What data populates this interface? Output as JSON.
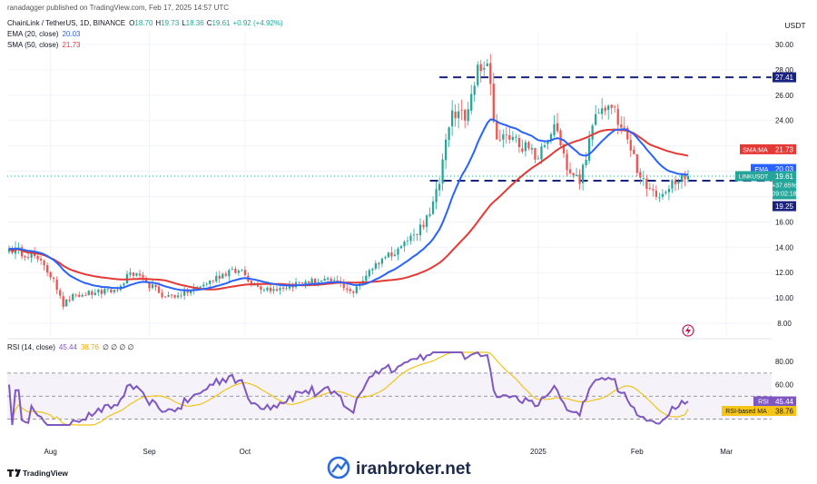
{
  "header": {
    "published": "ranadagger published on TradingView.com, Feb 17, 2025 14:57 UTC",
    "symbol": "ChainLink / TetherUS, 1D, BINANCE",
    "ohlc": [
      {
        "k": "O",
        "v": "18.70"
      },
      {
        "k": "H",
        "v": "19.73"
      },
      {
        "k": "L",
        "v": "18.36"
      },
      {
        "k": "C",
        "v": "19.61"
      }
    ],
    "change": "+0.92 (+4.92%)",
    "ema_label": "EMA (20, close)",
    "ema_value": "20.03",
    "sma_label": "SMA (50, close)",
    "sma_value": "21.73"
  },
  "currency": "USDT",
  "badges": {
    "level_top": "27.41",
    "sma_tag": "SMA:MA",
    "sma_val": "21.73",
    "ema_tag": "EMA",
    "ema_val": "20.03",
    "sym_tag": "LINKUSDT",
    "price": "19.61",
    "pct": "+37.65%",
    "timer": "09:02:18",
    "level_bottom": "19.25"
  },
  "rsi": {
    "label": "RSI (14, close)",
    "value": "45.44",
    "ma_value": "38.76",
    "tail": "∅ ∅ ∅ ∅",
    "rsi_tag": "RSI",
    "rsi_val": "45.44",
    "ma_tag": "RSI-based MA",
    "ma_val": "38.76"
  },
  "footer": {
    "brand": "TradingView",
    "watermark": "iranbroker.net"
  },
  "colors": {
    "up": "#26a69a",
    "down": "#ef5350",
    "ema": "#2962ff",
    "sma": "#e53935",
    "rsi": "#7e57c2",
    "rsi_ma": "#f0c419",
    "level": "#1a237e"
  },
  "chart_data": [
    {
      "type": "candlestick",
      "symbol": "LINKUSDT",
      "interval": "1D",
      "ylim": [
        7,
        31
      ],
      "y_ticks": [
        8,
        10,
        12,
        14,
        16,
        18,
        20,
        22,
        24,
        26,
        28,
        30
      ],
      "y_tick_labels": [
        "8.00",
        "10.00",
        "12.00",
        "14.00",
        "16.00",
        "",
        "",
        "",
        "24.00",
        "26.00",
        "28.00",
        "30.00"
      ],
      "x_tick_labels": [
        "Aug",
        "Sep",
        "Oct",
        "2025",
        "Feb",
        "Mar"
      ],
      "x_tick_dates": [
        "2024-08-01",
        "2024-09-01",
        "2024-10-01",
        "2025-01-01",
        "2025-02-01",
        "2025-03-01"
      ],
      "date_range": [
        "2024-07-19",
        "2025-02-17"
      ],
      "horizontal_levels": [
        27.41,
        19.25
      ],
      "current_price": 19.61,
      "anchors": [
        {
          "date": "2024-07-19",
          "close": 13.9
        },
        {
          "date": "2024-07-27",
          "close": 13.3
        },
        {
          "date": "2024-08-02",
          "close": 11.5
        },
        {
          "date": "2024-08-05",
          "close": 9.3
        },
        {
          "date": "2024-08-08",
          "close": 10.3
        },
        {
          "date": "2024-08-15",
          "close": 10.4
        },
        {
          "date": "2024-08-22",
          "close": 10.6
        },
        {
          "date": "2024-08-26",
          "close": 12.0
        },
        {
          "date": "2024-08-31",
          "close": 11.2
        },
        {
          "date": "2024-09-06",
          "close": 10.1
        },
        {
          "date": "2024-09-10",
          "close": 10.2
        },
        {
          "date": "2024-09-17",
          "close": 10.9
        },
        {
          "date": "2024-09-27",
          "close": 12.3
        },
        {
          "date": "2024-10-01",
          "close": 11.8
        },
        {
          "date": "2024-10-03",
          "close": 11.0
        },
        {
          "date": "2024-10-10",
          "close": 10.7
        },
        {
          "date": "2024-10-20",
          "close": 11.3
        },
        {
          "date": "2024-10-30",
          "close": 11.3
        },
        {
          "date": "2024-11-04",
          "close": 10.4
        },
        {
          "date": "2024-11-09",
          "close": 12.2
        },
        {
          "date": "2024-11-13",
          "close": 13.1
        },
        {
          "date": "2024-11-18",
          "close": 13.9
        },
        {
          "date": "2024-11-23",
          "close": 15.0
        },
        {
          "date": "2024-11-28",
          "close": 16.6
        },
        {
          "date": "2024-12-01",
          "close": 19.0
        },
        {
          "date": "2024-12-03",
          "close": 22.5
        },
        {
          "date": "2024-12-05",
          "close": 24.8
        },
        {
          "date": "2024-12-09",
          "close": 24.0
        },
        {
          "date": "2024-12-13",
          "close": 28.4
        },
        {
          "date": "2024-12-16",
          "close": 28.5
        },
        {
          "date": "2024-12-19",
          "close": 22.5
        },
        {
          "date": "2024-12-24",
          "close": 22.7
        },
        {
          "date": "2025-01-01",
          "close": 21.0
        },
        {
          "date": "2025-01-06",
          "close": 23.7
        },
        {
          "date": "2025-01-10",
          "close": 20.1
        },
        {
          "date": "2025-01-14",
          "close": 19.0
        },
        {
          "date": "2025-01-19",
          "close": 24.5
        },
        {
          "date": "2025-01-24",
          "close": 25.0
        },
        {
          "date": "2025-01-28",
          "close": 23.5
        },
        {
          "date": "2025-02-02",
          "close": 19.5
        },
        {
          "date": "2025-02-04",
          "close": 18.6
        },
        {
          "date": "2025-02-09",
          "close": 18.2
        },
        {
          "date": "2025-02-12",
          "close": 19.3
        },
        {
          "date": "2025-02-17",
          "close": 19.61
        }
      ],
      "series": [
        {
          "name": "EMA (20, close)",
          "last": 20.03
        },
        {
          "name": "SMA (50, close)",
          "last": 21.73
        }
      ]
    },
    {
      "type": "line",
      "name": "RSI (14, close)",
      "ylim": [
        25,
        88
      ],
      "y_ticks": [
        60,
        80
      ],
      "y_tick_labels": [
        "60.00",
        "80.00"
      ],
      "bands": [
        30,
        50,
        70
      ],
      "series": [
        {
          "name": "RSI",
          "last": 45.44
        },
        {
          "name": "RSI-based MA",
          "last": 38.76
        }
      ]
    }
  ]
}
